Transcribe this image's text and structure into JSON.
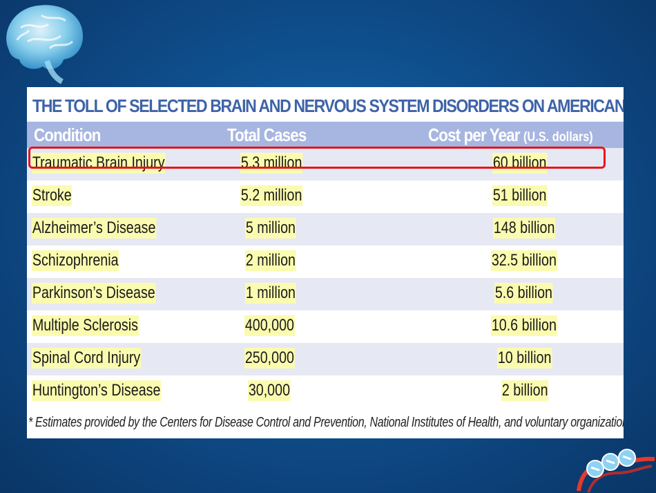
{
  "table": {
    "title": "THE TOLL OF SELECTED BRAIN AND NERVOUS SYSTEM DISORDERS ON AMERICANS",
    "headers": {
      "condition": "Condition",
      "total_cases": "Total Cases",
      "cost": "Cost per Year",
      "cost_unit": "(U.S. dollars)"
    },
    "rows": [
      {
        "condition": "Traumatic Brain Injury",
        "cases": "5.3 million",
        "cost": "60 billion"
      },
      {
        "condition": "Stroke",
        "cases": "5.2 million",
        "cost": "51 billion"
      },
      {
        "condition": "Alzheimer’s Disease",
        "cases": "5 million",
        "cost": "148 billion"
      },
      {
        "condition": "Schizophrenia",
        "cases": "2 million",
        "cost": "32.5 billion"
      },
      {
        "condition": "Parkinson’s Disease",
        "cases": "1 million",
        "cost": "5.6 billion"
      },
      {
        "condition": "Multiple Sclerosis",
        "cases": "400,000",
        "cost": "10.6 billion"
      },
      {
        "condition": "Spinal Cord Injury",
        "cases": "250,000",
        "cost": "10 billion"
      },
      {
        "condition": "Huntington’s Disease",
        "cases": "30,000",
        "cost": "2 billion"
      }
    ],
    "footnote": "* Estimates provided by the Centers for Disease Control and Prevention, National Institutes of Health, and voluntary organizations"
  },
  "icons": {
    "brain": "brain-icon",
    "logo": "swirl-logo-icon"
  },
  "colors": {
    "background": "#0f4f8e",
    "title": "#3e63a8",
    "header": "#a7b6e0",
    "cell_highlight": "#fbfbb0",
    "row_alt": "#e6e8f4",
    "callout": "#e8151b"
  }
}
